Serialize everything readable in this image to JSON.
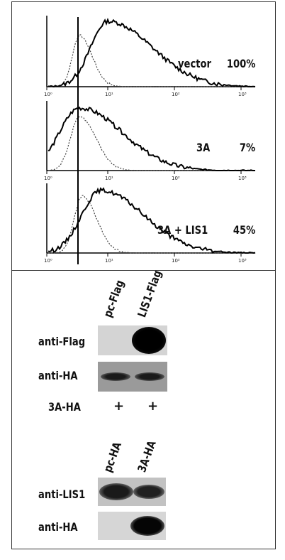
{
  "figure": {
    "histograms": [
      {
        "label": "vector",
        "percent": "100%"
      },
      {
        "label": "3A",
        "percent": "7%"
      },
      {
        "label": "3A + LIS1",
        "percent": "45%"
      }
    ],
    "axis_ticks": [
      "10⁰",
      "10¹",
      "10²",
      "10³"
    ],
    "blot1": {
      "lanes": [
        "pc-Flag",
        "LIS1-Flag"
      ],
      "rows": [
        "anti-Flag",
        "anti-HA"
      ],
      "condition_label": "3A-HA",
      "condition_marks": [
        "+",
        "+"
      ]
    },
    "blot2": {
      "lanes": [
        "pc-HA",
        "3A-HA"
      ],
      "rows": [
        "anti-LIS1",
        "anti-HA"
      ]
    }
  }
}
